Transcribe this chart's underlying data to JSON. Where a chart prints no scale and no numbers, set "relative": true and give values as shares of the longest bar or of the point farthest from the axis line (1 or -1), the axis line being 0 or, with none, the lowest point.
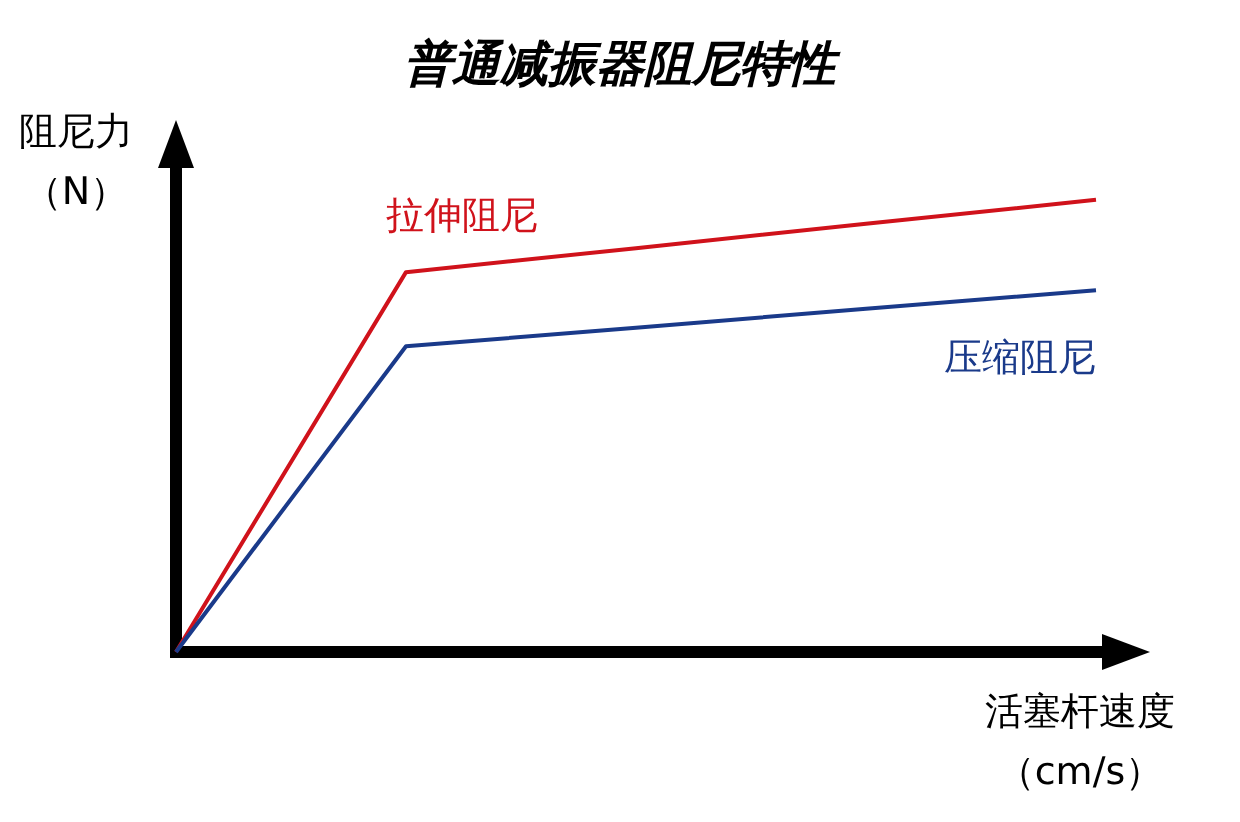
{
  "chart_data": {
    "type": "line",
    "title": "普通减振器阻尼特性",
    "xlabel": "活塞杆速度（cm/s）",
    "ylabel": "阻尼力（N）",
    "relative": true,
    "legend": false,
    "grid": false,
    "marker": "none",
    "line_style": "solid",
    "categories": [
      null,
      null,
      null,
      null,
      null
    ],
    "series": [
      {
        "name": "拉伸阻尼",
        "color": "#d0121b",
        "values": [
          0,
          0.84,
          0.893,
          0.947,
          1
        ]
      },
      {
        "name": "压缩阻尼",
        "color": "#1a3a8a",
        "values": [
          0,
          0.676,
          0.717,
          0.759,
          0.8
        ]
      }
    ]
  }
}
